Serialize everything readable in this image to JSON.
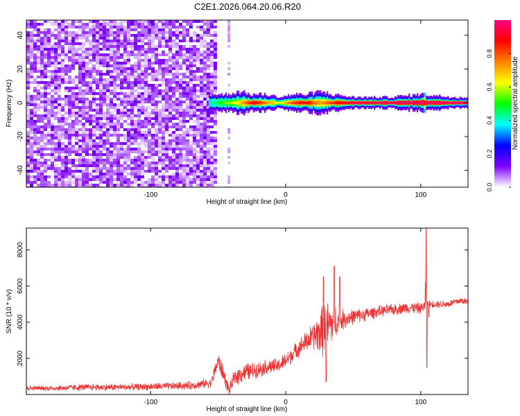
{
  "title": "C2E1.2026.064.20.06.R20",
  "chart_data": [
    {
      "type": "heatmap",
      "xlabel": "Height of straight line (km)",
      "ylabel": "Frequency (Hz)",
      "xlim": [
        -192,
        135
      ],
      "ylim": [
        -50,
        49
      ],
      "xticks": [
        -100,
        0,
        100
      ],
      "xtick_labels": [
        "-100",
        "0",
        "100"
      ],
      "yticks": [
        -40,
        -20,
        0,
        20,
        40
      ],
      "ytick_labels": [
        "-40",
        "-20",
        "0",
        "20",
        "40"
      ],
      "grid": false,
      "noise_region_x": [
        -192,
        -52
      ],
      "noise_stripe_x": -42,
      "signal_region_x": [
        -57,
        135
      ],
      "signal_frequency": 0,
      "signal_segments": [
        {
          "x": -55,
          "amplitude": 0.42,
          "spread": 3
        },
        {
          "x": -45,
          "amplitude": 0.55,
          "spread": 3
        },
        {
          "x": -35,
          "amplitude": 0.65,
          "spread": 4
        },
        {
          "x": -25,
          "amplitude": 0.9,
          "spread": 3
        },
        {
          "x": -15,
          "amplitude": 0.75,
          "spread": 3
        },
        {
          "x": -5,
          "amplitude": 0.6,
          "spread": 2
        },
        {
          "x": 5,
          "amplitude": 0.82,
          "spread": 3
        },
        {
          "x": 15,
          "amplitude": 0.88,
          "spread": 3
        },
        {
          "x": 25,
          "amplitude": 0.7,
          "spread": 4
        },
        {
          "x": 35,
          "amplitude": 0.85,
          "spread": 3
        },
        {
          "x": 50,
          "amplitude": 0.95,
          "spread": 2
        },
        {
          "x": 75,
          "amplitude": 0.97,
          "spread": 2
        },
        {
          "x": 100,
          "amplitude": 0.97,
          "spread": 3
        },
        {
          "x": 125,
          "amplitude": 0.97,
          "spread": 2
        }
      ],
      "colorbar": {
        "label": "Normalized spectral amplitude",
        "range": [
          0,
          1
        ],
        "ticks": [
          0.0,
          0.2,
          0.4,
          0.6,
          0.8
        ],
        "tick_labels": [
          "0.0",
          "0.2",
          "0.4",
          "0.6",
          "0.8"
        ],
        "colors": [
          "#ffffff",
          "#8000ff",
          "#0000ff",
          "#00ffff",
          "#00ff00",
          "#ffff00",
          "#ff8000",
          "#ff0000",
          "#ff0080"
        ]
      }
    },
    {
      "type": "line",
      "xlabel": "Height of straight line (km)",
      "ylabel": "SNR (10 * v/v)",
      "xlim": [
        -192,
        135
      ],
      "ylim": [
        0,
        9200
      ],
      "xticks": [
        -100,
        0,
        100
      ],
      "xtick_labels": [
        "-100",
        "0",
        "100"
      ],
      "yticks": [
        2000,
        4000,
        6000,
        8000
      ],
      "ytick_labels": [
        "2000",
        "4000",
        "6000",
        "8000"
      ],
      "grid": false,
      "series": [
        {
          "color": "#f03030",
          "x": [
            -192,
            -170,
            -150,
            -130,
            -110,
            -90,
            -70,
            -55,
            -50,
            -45,
            -42,
            -38,
            -32,
            -25,
            -15,
            -5,
            0,
            10,
            20,
            27,
            30,
            35,
            40,
            50,
            60,
            70,
            80,
            90,
            95,
            100,
            103,
            105,
            110,
            120,
            130,
            135
          ],
          "y": [
            350,
            350,
            400,
            400,
            420,
            450,
            500,
            650,
            1900,
            900,
            200,
            900,
            1200,
            1300,
            1500,
            1600,
            1850,
            2600,
            3200,
            3500,
            3700,
            4000,
            4100,
            4300,
            4450,
            4600,
            4700,
            4800,
            4800,
            4750,
            4900,
            5000,
            5000,
            5000,
            5200,
            5100
          ],
          "noise": [
            120,
            150,
            180,
            180,
            180,
            200,
            220,
            250,
            500,
            450,
            250,
            450,
            500,
            450,
            400,
            400,
            450,
            450,
            700,
            1300,
            1500,
            1100,
            600,
            400,
            350,
            300,
            300,
            300,
            300,
            300,
            300,
            200,
            200,
            200,
            200,
            200
          ],
          "spikes": [
            {
              "x": 104,
              "y": 9200
            },
            {
              "x": 104.6,
              "y": 1500
            },
            {
              "x": 103.5,
              "y": 6200
            },
            {
              "x": 106,
              "y": 4300
            },
            {
              "x": 28,
              "y": 6500
            },
            {
              "x": 36,
              "y": 7100
            },
            {
              "x": 40,
              "y": 6500
            },
            {
              "x": 30,
              "y": 700
            }
          ]
        }
      ]
    }
  ]
}
